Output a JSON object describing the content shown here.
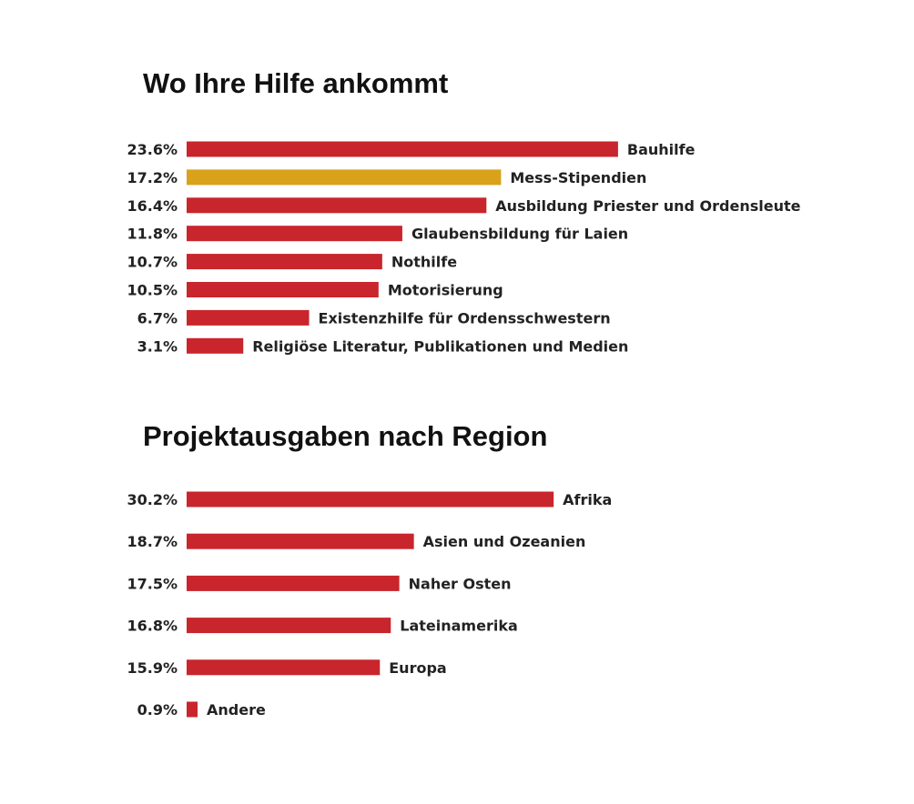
{
  "chart_data": [
    {
      "type": "bar",
      "orientation": "horizontal",
      "title": "Wo Ihre Hilfe ankommt",
      "categories": [
        "Bauhilfe",
        "Mess-Stipendien",
        "Ausbildung Priester und Ordensleute",
        "Glaubensbildung für Laien",
        "Nothilfe",
        "Motorisierung",
        "Existenzhilfe für Ordensschwestern",
        "Religiöse Literatur, Publikationen und Medien"
      ],
      "values": [
        23.6,
        17.2,
        16.4,
        11.8,
        10.7,
        10.5,
        6.7,
        3.1
      ],
      "value_labels": [
        "23.6%",
        "17.2%",
        "16.4%",
        "11.8%",
        "10.7%",
        "10.5%",
        "6.7%",
        "3.1%"
      ],
      "unit": "%",
      "colors": [
        "#c9252c",
        "#d8a31a",
        "#c9252c",
        "#c9252c",
        "#c9252c",
        "#c9252c",
        "#c9252c",
        "#c9252c"
      ],
      "grid": false,
      "legend": "none"
    },
    {
      "type": "bar",
      "orientation": "horizontal",
      "title": "Projektausgaben nach Region",
      "categories": [
        "Afrika",
        "Asien und Ozeanien",
        "Naher Osten",
        "Lateinamerika",
        "Europa",
        "Andere"
      ],
      "values": [
        30.2,
        18.7,
        17.5,
        16.8,
        15.9,
        0.9
      ],
      "value_labels": [
        "30.2%",
        "18.7%",
        "17.5%",
        "16.8%",
        "15.9%",
        "0.9%"
      ],
      "unit": "%",
      "colors": [
        "#c9252c",
        "#c9252c",
        "#c9252c",
        "#c9252c",
        "#c9252c",
        "#c9252c"
      ],
      "grid": false,
      "legend": "none"
    }
  ]
}
